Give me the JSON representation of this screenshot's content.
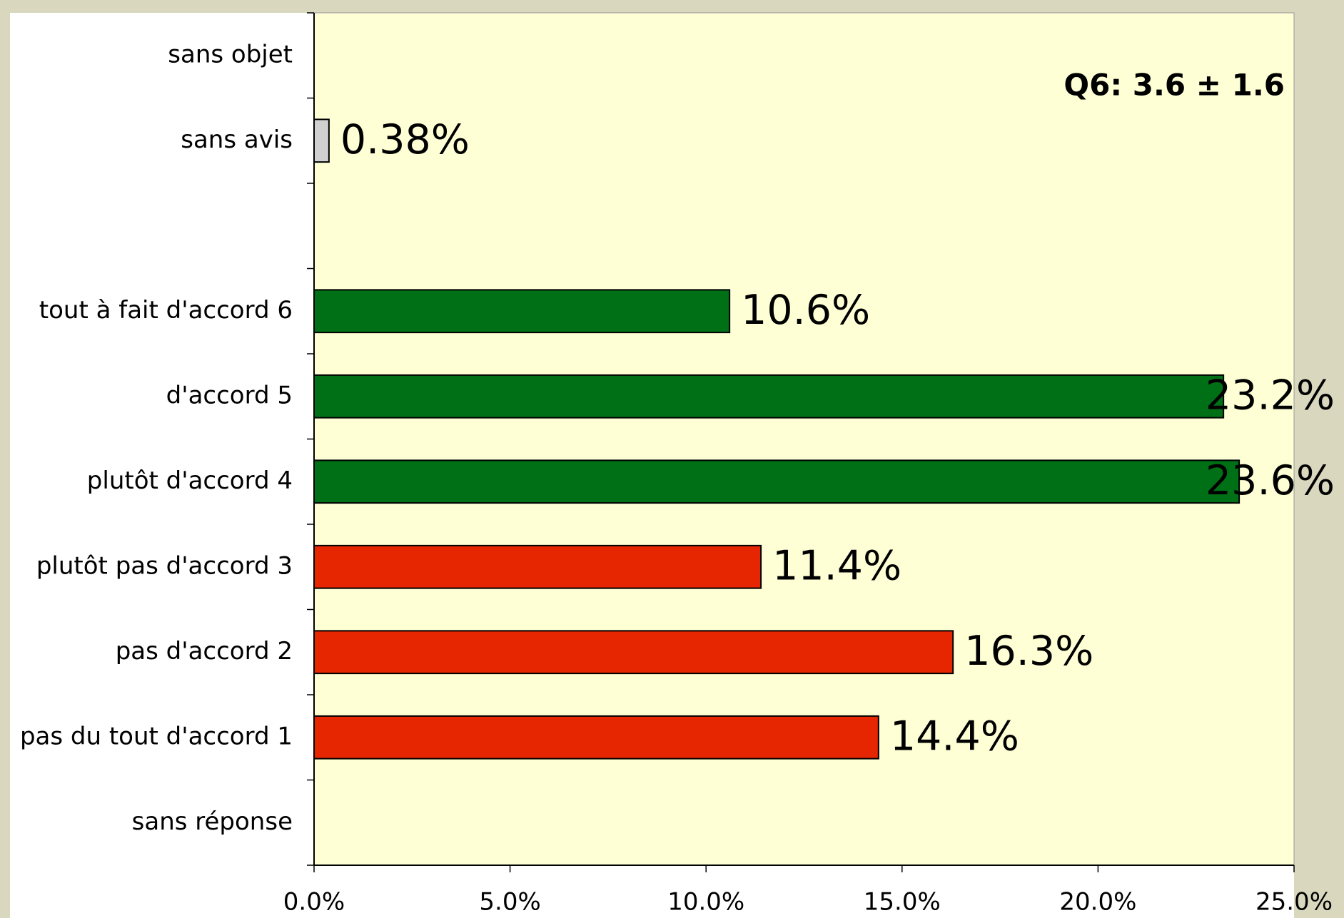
{
  "chart_data": {
    "type": "hbar",
    "annotation": "Q6: 3.6 ± 1.6",
    "categories": [
      "sans objet",
      "sans avis",
      null,
      "tout à fait d'accord 6",
      "d'accord 5",
      "plutôt d'accord 4",
      "plutôt pas d'accord 3",
      "pas d'accord 2",
      "pas du tout d'accord 1",
      "sans réponse"
    ],
    "values": [
      null,
      0.38,
      null,
      10.6,
      23.2,
      23.6,
      11.4,
      16.3,
      14.4,
      null
    ],
    "value_labels": [
      null,
      "0.38%",
      null,
      "10.6%",
      "23.2%",
      "23.6%",
      "11.4%",
      "16.3%",
      "14.4%",
      null
    ],
    "colors": [
      null,
      "#d0d0d0",
      null,
      "#007016",
      "#007016",
      "#007016",
      "#e52600",
      "#e52600",
      "#e52600",
      null
    ],
    "xlim": [
      0,
      25
    ],
    "xticks": [
      {
        "value": 0,
        "label": "0.0%"
      },
      {
        "value": 5,
        "label": "5.0%"
      },
      {
        "value": 10,
        "label": "10.0%"
      },
      {
        "value": 15,
        "label": "15.0%"
      },
      {
        "value": 20,
        "label": "20.0%"
      },
      {
        "value": 25,
        "label": "25.0%"
      }
    ]
  }
}
